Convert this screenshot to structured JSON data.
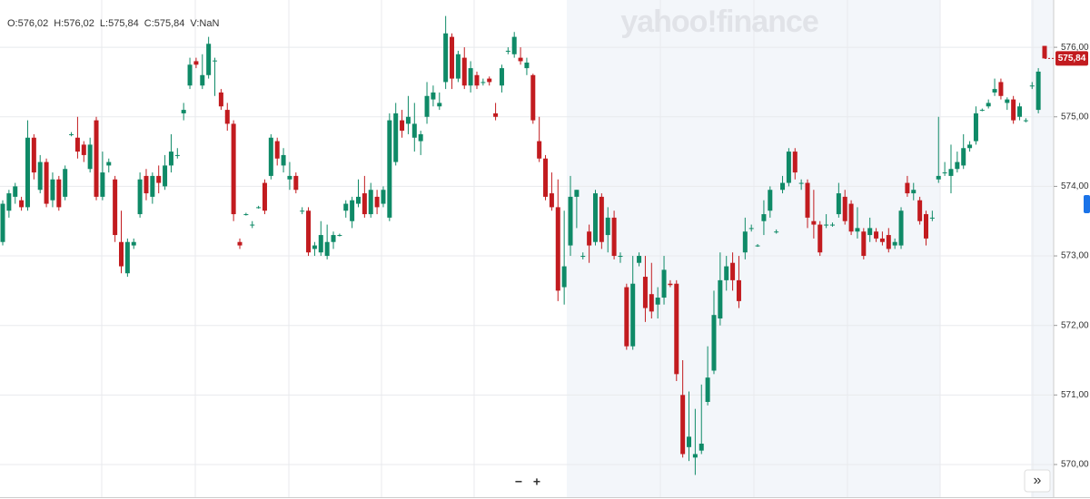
{
  "chart_data": {
    "type": "candlestick",
    "info": [
      "O:576,02",
      "H:576,02",
      "L:575,84",
      "C:575,84",
      "V:NaN"
    ],
    "watermark": "yahoo!finance",
    "controls": [
      "−",
      "+"
    ],
    "scroll_button": "»",
    "up_color": "#0f8a67",
    "down_color": "#c21b1f",
    "ylim": [
      569.53,
      576.68
    ],
    "yticks": [
      {
        "value": 570,
        "label": "570,00"
      },
      {
        "value": 571,
        "label": "571,00"
      },
      {
        "value": 572,
        "label": "572,00"
      },
      {
        "value": 573,
        "label": "573,00"
      },
      {
        "value": 574,
        "label": "574,00"
      },
      {
        "value": 575,
        "label": "575,00"
      },
      {
        "value": 576,
        "label": "576,00"
      }
    ],
    "grid": true,
    "last_price": {
      "value": 575.84,
      "label": "575,84"
    },
    "candles": [
      [
        573.2,
        573.8,
        573.15,
        573.75
      ],
      [
        573.65,
        573.95,
        573.55,
        573.9
      ],
      [
        573.85,
        574.05,
        573.75,
        574.0
      ],
      [
        573.8,
        573.85,
        573.65,
        573.7
      ],
      [
        573.7,
        574.95,
        573.65,
        574.7
      ],
      [
        574.7,
        574.75,
        574.1,
        574.2
      ],
      [
        573.95,
        574.45,
        573.9,
        574.35
      ],
      [
        574.35,
        574.4,
        573.7,
        573.75
      ],
      [
        573.8,
        574.2,
        573.7,
        574.1
      ],
      [
        574.1,
        574.15,
        573.65,
        573.7
      ],
      [
        573.85,
        574.3,
        573.8,
        574.25
      ],
      [
        574.75,
        574.78,
        574.72,
        574.75
      ],
      [
        574.7,
        575.0,
        574.4,
        574.5
      ],
      [
        574.6,
        574.65,
        574.35,
        574.45
      ],
      [
        574.25,
        574.7,
        574.2,
        574.6
      ],
      [
        574.95,
        575.0,
        573.8,
        573.85
      ],
      [
        573.85,
        574.5,
        573.8,
        574.2
      ],
      [
        574.3,
        574.4,
        574.2,
        574.35
      ],
      [
        574.1,
        574.15,
        573.2,
        573.3
      ],
      [
        573.2,
        573.65,
        572.75,
        572.85
      ],
      [
        572.75,
        573.25,
        572.7,
        573.2
      ],
      [
        573.15,
        573.25,
        573.1,
        573.2
      ],
      [
        573.6,
        574.2,
        573.55,
        574.1
      ],
      [
        574.15,
        574.25,
        573.8,
        573.9
      ],
      [
        573.85,
        574.2,
        573.75,
        574.15
      ],
      [
        574.15,
        574.3,
        573.9,
        574.05
      ],
      [
        574.0,
        574.45,
        573.95,
        574.3
      ],
      [
        574.3,
        574.75,
        574.2,
        574.5
      ],
      [
        574.45,
        574.55,
        574.4,
        574.45
      ],
      [
        575.05,
        575.2,
        574.95,
        575.1
      ],
      [
        575.45,
        575.85,
        575.4,
        575.75
      ],
      [
        575.8,
        575.85,
        575.7,
        575.75
      ],
      [
        575.45,
        575.9,
        575.4,
        575.6
      ],
      [
        575.6,
        576.15,
        575.55,
        576.05
      ],
      [
        575.8,
        575.85,
        575.3,
        575.81
      ],
      [
        575.35,
        575.4,
        575.1,
        575.15
      ],
      [
        575.1,
        575.2,
        574.8,
        574.9
      ],
      [
        574.9,
        574.95,
        573.5,
        573.6
      ],
      [
        573.2,
        573.25,
        573.1,
        573.15
      ],
      [
        573.6,
        573.62,
        573.58,
        573.6
      ],
      [
        573.45,
        573.5,
        573.4,
        573.45
      ],
      [
        573.7,
        573.72,
        573.68,
        573.7
      ],
      [
        574.05,
        574.1,
        573.6,
        573.65
      ],
      [
        574.15,
        574.75,
        574.1,
        574.7
      ],
      [
        574.65,
        574.7,
        574.3,
        574.4
      ],
      [
        574.3,
        574.55,
        574.2,
        574.45
      ],
      [
        574.1,
        574.35,
        573.95,
        574.15
      ],
      [
        574.15,
        574.2,
        573.9,
        573.95
      ],
      [
        573.65,
        573.7,
        573.6,
        573.65
      ],
      [
        573.65,
        573.7,
        573.0,
        573.05
      ],
      [
        573.1,
        573.2,
        573.0,
        573.15
      ],
      [
        573.05,
        573.5,
        573.0,
        573.3
      ],
      [
        573.0,
        573.45,
        572.95,
        573.2
      ],
      [
        573.2,
        573.35,
        573.1,
        573.3
      ],
      [
        573.3,
        573.32,
        573.28,
        573.3
      ],
      [
        573.65,
        573.8,
        573.55,
        573.75
      ],
      [
        573.5,
        573.85,
        573.4,
        573.8
      ],
      [
        573.75,
        574.1,
        573.7,
        573.85
      ],
      [
        573.9,
        574.15,
        573.55,
        573.6
      ],
      [
        573.6,
        574.05,
        573.55,
        573.95
      ],
      [
        573.85,
        573.95,
        573.6,
        573.7
      ],
      [
        573.75,
        574.0,
        573.7,
        573.95
      ],
      [
        573.55,
        575.05,
        573.5,
        574.95
      ],
      [
        574.35,
        575.2,
        574.3,
        575.05
      ],
      [
        574.95,
        575.1,
        574.7,
        574.8
      ],
      [
        574.9,
        575.3,
        574.75,
        575.0
      ],
      [
        574.7,
        575.2,
        574.5,
        574.9
      ],
      [
        574.65,
        574.8,
        574.45,
        574.75
      ],
      [
        575.0,
        575.5,
        574.9,
        575.3
      ],
      [
        575.25,
        575.45,
        575.15,
        575.35
      ],
      [
        575.15,
        575.35,
        575.1,
        575.2
      ],
      [
        575.5,
        576.45,
        575.4,
        576.2
      ],
      [
        576.15,
        576.2,
        575.4,
        575.55
      ],
      [
        575.55,
        575.95,
        575.5,
        575.9
      ],
      [
        575.85,
        576.0,
        575.4,
        575.45
      ],
      [
        575.45,
        575.8,
        575.35,
        575.7
      ],
      [
        575.6,
        575.65,
        575.4,
        575.45
      ],
      [
        575.5,
        575.55,
        575.45,
        575.5
      ],
      [
        575.55,
        575.58,
        575.45,
        575.5
      ],
      [
        575.05,
        575.2,
        574.95,
        575.0
      ],
      [
        575.45,
        575.75,
        575.35,
        575.7
      ],
      [
        575.95,
        576.0,
        575.9,
        575.95
      ],
      [
        575.9,
        576.22,
        575.85,
        576.15
      ],
      [
        575.85,
        576.0,
        575.75,
        575.8
      ],
      [
        575.7,
        575.85,
        575.6,
        575.78
      ],
      [
        575.6,
        575.62,
        574.9,
        574.95
      ],
      [
        574.65,
        575.0,
        574.35,
        574.4
      ],
      [
        574.4,
        574.45,
        573.8,
        573.85
      ],
      [
        573.9,
        574.2,
        573.65,
        573.7
      ],
      [
        573.7,
        574.1,
        572.35,
        572.5
      ],
      [
        572.55,
        573.65,
        572.3,
        572.85
      ],
      [
        573.15,
        574.15,
        573.0,
        573.85
      ],
      [
        573.85,
        573.95,
        573.4,
        573.95
      ],
      [
        573.0,
        573.05,
        572.95,
        573.0
      ],
      [
        573.35,
        573.45,
        572.9,
        573.15
      ],
      [
        573.2,
        573.95,
        573.15,
        573.9
      ],
      [
        573.85,
        573.9,
        573.1,
        573.2
      ],
      [
        573.3,
        573.7,
        573.05,
        573.55
      ],
      [
        573.55,
        573.65,
        572.95,
        573.0
      ],
      [
        573.0,
        573.05,
        572.9,
        573.0
      ],
      [
        572.55,
        572.6,
        571.65,
        571.7
      ],
      [
        571.7,
        573.0,
        571.65,
        572.6
      ],
      [
        572.9,
        573.05,
        572.85,
        573.0
      ],
      [
        572.7,
        573.0,
        572.05,
        572.25
      ],
      [
        572.45,
        572.9,
        572.1,
        572.2
      ],
      [
        572.3,
        572.55,
        572.1,
        572.4
      ],
      [
        572.4,
        573.0,
        572.3,
        572.8
      ],
      [
        572.6,
        572.65,
        572.55,
        572.58
      ],
      [
        572.6,
        572.65,
        571.2,
        571.3
      ],
      [
        571.0,
        571.5,
        570.1,
        570.15
      ],
      [
        570.25,
        571.05,
        570.05,
        570.4
      ],
      [
        570.1,
        570.8,
        569.85,
        570.15
      ],
      [
        570.2,
        571.15,
        570.15,
        570.3
      ],
      [
        570.9,
        571.7,
        570.85,
        571.25
      ],
      [
        571.35,
        572.5,
        571.3,
        572.15
      ],
      [
        572.1,
        573.05,
        572.0,
        572.65
      ],
      [
        572.65,
        573.0,
        572.5,
        572.85
      ],
      [
        572.9,
        573.05,
        572.5,
        572.65
      ],
      [
        572.65,
        573.0,
        572.25,
        572.35
      ],
      [
        573.05,
        573.55,
        572.95,
        573.35
      ],
      [
        573.4,
        573.45,
        573.35,
        573.4
      ],
      [
        573.15,
        573.17,
        573.13,
        573.15
      ],
      [
        573.5,
        573.8,
        573.3,
        573.6
      ],
      [
        573.65,
        574.0,
        573.55,
        573.95
      ],
      [
        573.35,
        573.38,
        573.32,
        573.35
      ],
      [
        573.95,
        574.15,
        573.9,
        574.05
      ],
      [
        574.05,
        574.55,
        574.0,
        574.5
      ],
      [
        574.5,
        574.55,
        574.1,
        574.2
      ],
      [
        574.05,
        574.1,
        573.95,
        574.05
      ],
      [
        574.05,
        574.1,
        573.4,
        573.55
      ],
      [
        573.5,
        573.95,
        573.25,
        573.45
      ],
      [
        573.45,
        573.5,
        573.0,
        573.05
      ],
      [
        573.45,
        573.6,
        573.4,
        573.45
      ],
      [
        573.45,
        573.48,
        573.42,
        573.45
      ],
      [
        573.6,
        574.05,
        573.55,
        573.9
      ],
      [
        573.85,
        573.95,
        573.45,
        573.5
      ],
      [
        573.75,
        573.8,
        573.3,
        573.35
      ],
      [
        573.35,
        573.7,
        573.25,
        573.4
      ],
      [
        573.35,
        573.4,
        572.95,
        573.0
      ],
      [
        573.3,
        573.55,
        573.2,
        573.4
      ],
      [
        573.35,
        573.4,
        573.2,
        573.25
      ],
      [
        573.25,
        573.35,
        573.15,
        573.2
      ],
      [
        573.3,
        573.4,
        573.05,
        573.1
      ],
      [
        573.15,
        573.25,
        573.1,
        573.2
      ],
      [
        573.15,
        573.7,
        573.1,
        573.65
      ],
      [
        574.05,
        574.15,
        573.85,
        573.9
      ],
      [
        573.9,
        574.05,
        573.8,
        573.95
      ],
      [
        573.8,
        573.85,
        573.45,
        573.5
      ],
      [
        573.6,
        573.65,
        573.15,
        573.25
      ],
      [
        573.55,
        573.65,
        573.5,
        573.55
      ],
      [
        574.1,
        575.0,
        574.05,
        574.15
      ],
      [
        574.2,
        574.35,
        574.15,
        574.2
      ],
      [
        574.15,
        574.6,
        573.9,
        574.25
      ],
      [
        574.25,
        574.5,
        574.2,
        574.35
      ],
      [
        574.3,
        574.75,
        574.25,
        574.55
      ],
      [
        574.55,
        574.65,
        574.5,
        574.6
      ],
      [
        574.65,
        575.15,
        574.6,
        575.05
      ],
      [
        575.1,
        575.12,
        575.08,
        575.1
      ],
      [
        575.15,
        575.25,
        575.12,
        575.2
      ],
      [
        575.35,
        575.55,
        575.3,
        575.4
      ],
      [
        575.5,
        575.55,
        575.25,
        575.3
      ],
      [
        575.2,
        575.28,
        575.1,
        575.25
      ],
      [
        575.25,
        575.3,
        574.9,
        574.95
      ],
      [
        575.0,
        575.2,
        574.95,
        575.15
      ],
      [
        574.95,
        574.98,
        574.92,
        574.95
      ],
      [
        575.45,
        575.5,
        575.4,
        575.45
      ],
      [
        575.1,
        575.7,
        575.05,
        575.65
      ],
      [
        576.02,
        576.02,
        575.84,
        575.84
      ]
    ]
  }
}
